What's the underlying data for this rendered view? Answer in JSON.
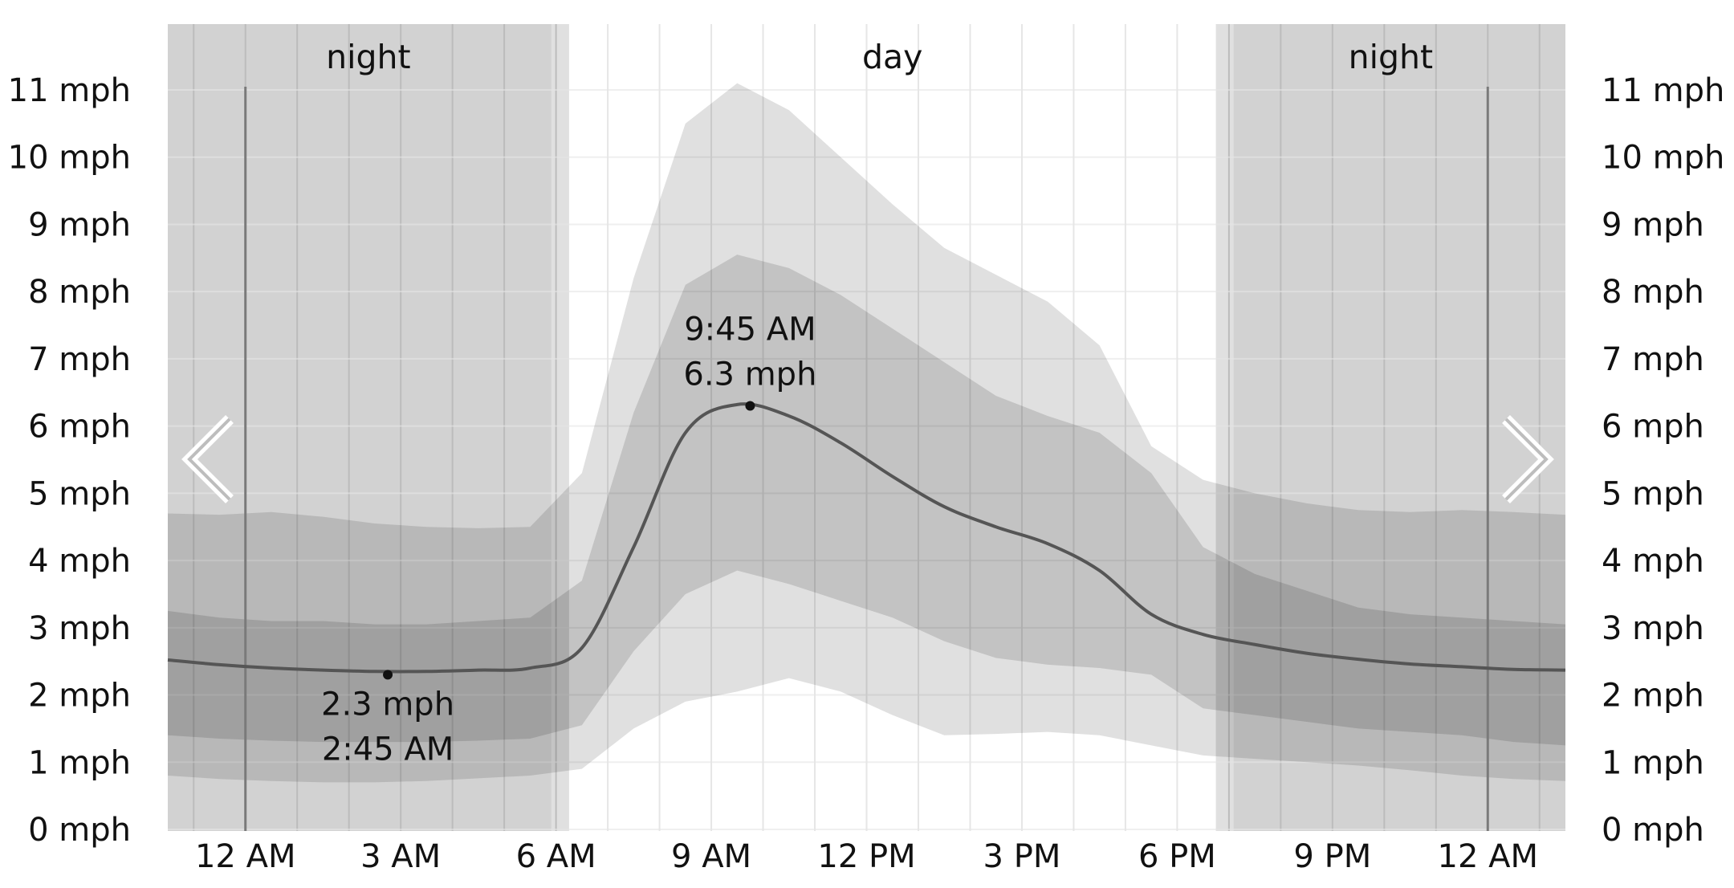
{
  "chart_data": {
    "type": "area",
    "title": "",
    "xlabel": "",
    "ylabel": "",
    "y_unit": "mph",
    "ylim": [
      0,
      11
    ],
    "xlim": [
      -1.5,
      25.5
    ],
    "y_ticks": [
      0,
      1,
      2,
      3,
      4,
      5,
      6,
      7,
      8,
      9,
      10,
      11
    ],
    "y_tick_labels": [
      "0 mph",
      "1 mph",
      "2 mph",
      "3 mph",
      "4 mph",
      "5 mph",
      "6 mph",
      "7 mph",
      "8 mph",
      "9 mph",
      "10 mph",
      "11 mph"
    ],
    "x_ticks": [
      0,
      3,
      6,
      9,
      12,
      15,
      18,
      21,
      24
    ],
    "x_tick_labels": [
      "12 AM",
      "3 AM",
      "6 AM",
      "9 AM",
      "12 PM",
      "3 PM",
      "6 PM",
      "9 PM",
      "12 AM"
    ],
    "grid": true,
    "periods": [
      {
        "label": "night",
        "start": -1.5,
        "end": 6.25
      },
      {
        "label": "day",
        "start": 6.25,
        "end": 18.75
      },
      {
        "label": "night",
        "start": 18.75,
        "end": 25.5
      }
    ],
    "x": [
      -1.5,
      -0.5,
      0.5,
      1.5,
      2.5,
      3.5,
      4.5,
      5.5,
      6.5,
      7.5,
      8.5,
      9.5,
      10.5,
      11.5,
      12.5,
      13.5,
      14.5,
      15.5,
      16.5,
      17.5,
      18.5,
      19.5,
      20.5,
      21.5,
      22.5,
      23.5,
      24.5,
      25.5
    ],
    "series": [
      {
        "name": "p10",
        "values": [
          0.8,
          0.75,
          0.72,
          0.7,
          0.7,
          0.72,
          0.76,
          0.8,
          0.9,
          1.5,
          1.9,
          2.05,
          2.25,
          2.05,
          1.7,
          1.4,
          1.42,
          1.45,
          1.4,
          1.25,
          1.1,
          1.05,
          1.0,
          0.95,
          0.88,
          0.8,
          0.75,
          0.72
        ]
      },
      {
        "name": "p25",
        "values": [
          1.4,
          1.35,
          1.32,
          1.3,
          1.3,
          1.3,
          1.32,
          1.35,
          1.55,
          2.65,
          3.5,
          3.85,
          3.65,
          3.4,
          3.15,
          2.8,
          2.55,
          2.45,
          2.4,
          2.3,
          1.8,
          1.7,
          1.6,
          1.5,
          1.45,
          1.4,
          1.3,
          1.25
        ]
      },
      {
        "name": "median",
        "values": [
          2.52,
          2.45,
          2.4,
          2.37,
          2.35,
          2.35,
          2.37,
          2.4,
          2.7,
          4.2,
          5.9,
          6.32,
          6.15,
          5.75,
          5.25,
          4.8,
          4.5,
          4.25,
          3.85,
          3.2,
          2.9,
          2.75,
          2.62,
          2.53,
          2.46,
          2.42,
          2.38,
          2.37
        ]
      },
      {
        "name": "p75",
        "values": [
          3.25,
          3.15,
          3.1,
          3.1,
          3.05,
          3.05,
          3.1,
          3.15,
          3.7,
          6.2,
          8.1,
          8.55,
          8.35,
          7.95,
          7.45,
          6.95,
          6.45,
          6.15,
          5.9,
          5.3,
          4.2,
          3.8,
          3.55,
          3.3,
          3.2,
          3.15,
          3.1,
          3.05
        ]
      },
      {
        "name": "p90",
        "values": [
          4.7,
          4.68,
          4.72,
          4.65,
          4.55,
          4.5,
          4.48,
          4.5,
          5.3,
          8.2,
          10.5,
          11.1,
          10.7,
          10.0,
          9.3,
          8.65,
          8.25,
          7.85,
          7.2,
          5.7,
          5.2,
          5.0,
          4.85,
          4.75,
          4.72,
          4.75,
          4.72,
          4.68
        ]
      }
    ],
    "annotations": [
      {
        "x": 9.75,
        "y": 6.3,
        "time_label": "9:45 AM",
        "value_label": "6.3 mph"
      },
      {
        "x": 2.75,
        "y": 2.3,
        "value_label": "2.3 mph",
        "time_label": "2:45 AM"
      }
    ],
    "nav": {
      "prev": "chevron-left-icon",
      "next": "chevron-right-icon"
    },
    "colors": {
      "background": "#ffffff",
      "night_shade": "#d2d2d2",
      "twilight_shade": "#e0e0e0",
      "grid": "#e6e6e6",
      "grid_night": "#bcbcbc",
      "band_outer": "#000000",
      "band_inner": "#000000",
      "median_line": "#555555",
      "midnight_line": "#7a7a7a"
    }
  }
}
